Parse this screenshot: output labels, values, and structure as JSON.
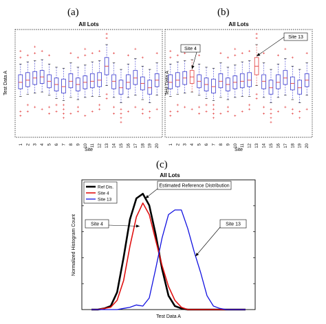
{
  "panel_labels": {
    "a": "(a)",
    "b": "(b)",
    "c": "(c)"
  },
  "colors": {
    "box": "#3333cc",
    "highlight": "#e23b3b",
    "outlier": "#e23b3b",
    "ref": "#000000",
    "site4": "#e01010",
    "site13": "#1010e0"
  },
  "chart_data": [
    {
      "type": "box",
      "panel": "a",
      "title": "All Lots",
      "xlabel": "Site",
      "ylabel": "Test Data A",
      "categories": [
        "1",
        "2",
        "3",
        "4",
        "5",
        "6",
        "7",
        "8",
        "9",
        "10",
        "11",
        "12",
        "13",
        "14",
        "15",
        "16",
        "17",
        "18",
        "19",
        "20"
      ],
      "highlight": [],
      "ylim": [
        0,
        100
      ],
      "boxes": [
        {
          "wlo": 38,
          "q1": 45,
          "med": 51,
          "q3": 58,
          "whi": 68
        },
        {
          "wlo": 40,
          "q1": 47,
          "med": 53,
          "q3": 60,
          "whi": 70
        },
        {
          "wlo": 41,
          "q1": 49,
          "med": 55,
          "q3": 61,
          "whi": 71
        },
        {
          "wlo": 42,
          "q1": 50,
          "med": 56,
          "q3": 62,
          "whi": 72
        },
        {
          "wlo": 39,
          "q1": 46,
          "med": 52,
          "q3": 58,
          "whi": 68
        },
        {
          "wlo": 36,
          "q1": 43,
          "med": 49,
          "q3": 55,
          "whi": 65
        },
        {
          "wlo": 34,
          "q1": 41,
          "med": 47,
          "q3": 54,
          "whi": 64
        },
        {
          "wlo": 37,
          "q1": 46,
          "med": 52,
          "q3": 59,
          "whi": 69
        },
        {
          "wlo": 35,
          "q1": 43,
          "med": 49,
          "q3": 55,
          "whi": 65
        },
        {
          "wlo": 37,
          "q1": 45,
          "med": 51,
          "q3": 57,
          "whi": 67
        },
        {
          "wlo": 38,
          "q1": 46,
          "med": 52,
          "q3": 59,
          "whi": 70
        },
        {
          "wlo": 38,
          "q1": 47,
          "med": 53,
          "q3": 60,
          "whi": 71
        },
        {
          "wlo": 48,
          "q1": 58,
          "med": 66,
          "q3": 74,
          "whi": 86
        },
        {
          "wlo": 37,
          "q1": 45,
          "med": 52,
          "q3": 58,
          "whi": 69
        },
        {
          "wlo": 32,
          "q1": 40,
          "med": 46,
          "q3": 53,
          "whi": 63
        },
        {
          "wlo": 37,
          "q1": 45,
          "med": 51,
          "q3": 58,
          "whi": 68
        },
        {
          "wlo": 39,
          "q1": 49,
          "med": 55,
          "q3": 62,
          "whi": 73
        },
        {
          "wlo": 35,
          "q1": 44,
          "med": 50,
          "q3": 56,
          "whi": 66
        },
        {
          "wlo": 32,
          "q1": 40,
          "med": 46,
          "q3": 53,
          "whi": 63
        },
        {
          "wlo": 39,
          "q1": 47,
          "med": 53,
          "q3": 59,
          "whi": 69
        }
      ],
      "outliers": [
        [
          20,
          24,
          74,
          80
        ],
        [
          24,
          30,
          76
        ],
        [
          28,
          78,
          84
        ],
        [
          26,
          80
        ],
        [
          22,
          28,
          76
        ],
        [
          24,
          30
        ],
        [
          18,
          22,
          26,
          30
        ],
        [
          22,
          78
        ],
        [
          24,
          28,
          74
        ],
        [
          20,
          76,
          82
        ],
        [
          24,
          78
        ],
        [
          26,
          30,
          80
        ],
        [
          36,
          40,
          92,
          96
        ],
        [
          22,
          28,
          78
        ],
        [
          14,
          18,
          22,
          26
        ],
        [
          24,
          76
        ],
        [
          28,
          82
        ],
        [
          22,
          26,
          74
        ],
        [
          18,
          24
        ],
        [
          26,
          78
        ]
      ],
      "annotations": []
    },
    {
      "type": "box",
      "panel": "b",
      "title": "All Lots",
      "xlabel": "Site",
      "ylabel": "Test Data A",
      "categories": [
        "1",
        "2",
        "3",
        "4",
        "5",
        "6",
        "7",
        "8",
        "9",
        "10",
        "11",
        "12",
        "13",
        "14",
        "15",
        "16",
        "17",
        "18",
        "19",
        "20"
      ],
      "highlight": [
        4,
        13
      ],
      "ylim": [
        0,
        100
      ],
      "boxes": [
        {
          "wlo": 38,
          "q1": 45,
          "med": 51,
          "q3": 58,
          "whi": 68
        },
        {
          "wlo": 40,
          "q1": 47,
          "med": 53,
          "q3": 60,
          "whi": 70
        },
        {
          "wlo": 41,
          "q1": 49,
          "med": 55,
          "q3": 61,
          "whi": 71
        },
        {
          "wlo": 42,
          "q1": 50,
          "med": 56,
          "q3": 62,
          "whi": 72
        },
        {
          "wlo": 39,
          "q1": 46,
          "med": 52,
          "q3": 58,
          "whi": 68
        },
        {
          "wlo": 36,
          "q1": 43,
          "med": 49,
          "q3": 55,
          "whi": 65
        },
        {
          "wlo": 34,
          "q1": 41,
          "med": 47,
          "q3": 54,
          "whi": 64
        },
        {
          "wlo": 37,
          "q1": 46,
          "med": 52,
          "q3": 59,
          "whi": 69
        },
        {
          "wlo": 35,
          "q1": 43,
          "med": 49,
          "q3": 55,
          "whi": 65
        },
        {
          "wlo": 37,
          "q1": 45,
          "med": 51,
          "q3": 57,
          "whi": 67
        },
        {
          "wlo": 38,
          "q1": 46,
          "med": 52,
          "q3": 59,
          "whi": 70
        },
        {
          "wlo": 38,
          "q1": 47,
          "med": 53,
          "q3": 60,
          "whi": 71
        },
        {
          "wlo": 48,
          "q1": 58,
          "med": 66,
          "q3": 74,
          "whi": 86
        },
        {
          "wlo": 37,
          "q1": 45,
          "med": 52,
          "q3": 58,
          "whi": 69
        },
        {
          "wlo": 32,
          "q1": 40,
          "med": 46,
          "q3": 53,
          "whi": 63
        },
        {
          "wlo": 37,
          "q1": 45,
          "med": 51,
          "q3": 58,
          "whi": 68
        },
        {
          "wlo": 39,
          "q1": 49,
          "med": 55,
          "q3": 62,
          "whi": 73
        },
        {
          "wlo": 35,
          "q1": 44,
          "med": 50,
          "q3": 56,
          "whi": 66
        },
        {
          "wlo": 32,
          "q1": 40,
          "med": 46,
          "q3": 53,
          "whi": 63
        },
        {
          "wlo": 39,
          "q1": 47,
          "med": 53,
          "q3": 59,
          "whi": 69
        }
      ],
      "outliers": [
        [
          20,
          24,
          74,
          80
        ],
        [
          24,
          30,
          76
        ],
        [
          28,
          78,
          84
        ],
        [
          26,
          80
        ],
        [
          22,
          28,
          76
        ],
        [
          24,
          30
        ],
        [
          18,
          22,
          26,
          30
        ],
        [
          22,
          78
        ],
        [
          24,
          28,
          74
        ],
        [
          20,
          76,
          82
        ],
        [
          24,
          78
        ],
        [
          26,
          30,
          80
        ],
        [
          36,
          40,
          92,
          96
        ],
        [
          22,
          28,
          78
        ],
        [
          14,
          18,
          22,
          26
        ],
        [
          24,
          76
        ],
        [
          28,
          82
        ],
        [
          22,
          26,
          74
        ],
        [
          18,
          24
        ],
        [
          26,
          78
        ]
      ],
      "annotations": [
        {
          "text": "Site 4",
          "target_site": 4
        },
        {
          "text": "Site 13",
          "target_site": 13
        }
      ]
    },
    {
      "type": "line",
      "panel": "c",
      "title": "All Lots",
      "xlabel": "Test Data A",
      "ylabel": "Normalized Histogram Count",
      "xlim": [
        0,
        24
      ],
      "ylim": [
        0,
        1.12
      ],
      "legend": "top-left",
      "series": [
        {
          "name": "Ref Dis.",
          "x": [
            0,
            1,
            2,
            3,
            4,
            5,
            6,
            7,
            8,
            9,
            10,
            11,
            12,
            13,
            14,
            15,
            16,
            17,
            18,
            19,
            20,
            21,
            22,
            23,
            24
          ],
          "y": [
            0,
            0,
            0.01,
            0.03,
            0.15,
            0.45,
            0.78,
            0.96,
            1.0,
            0.9,
            0.65,
            0.35,
            0.12,
            0.03,
            0.01,
            0,
            0,
            0,
            0,
            0,
            0,
            0,
            0,
            0,
            0
          ]
        },
        {
          "name": "Site 4",
          "x": [
            0,
            1,
            2,
            3,
            4,
            5,
            6,
            7,
            8,
            9,
            10,
            11,
            12,
            13,
            14,
            15,
            16,
            17,
            18,
            19,
            20,
            21,
            22,
            23,
            24
          ],
          "y": [
            0,
            0,
            0.01,
            0.02,
            0.08,
            0.25,
            0.55,
            0.8,
            0.92,
            0.82,
            0.6,
            0.38,
            0.2,
            0.08,
            0.02,
            0,
            0,
            0,
            0,
            0,
            0,
            0,
            0,
            0,
            0
          ]
        },
        {
          "name": "Site 13",
          "x": [
            0,
            1,
            2,
            3,
            4,
            5,
            6,
            7,
            8,
            9,
            10,
            11,
            12,
            13,
            14,
            15,
            16,
            17,
            18,
            19,
            20,
            21,
            22,
            23,
            24
          ],
          "y": [
            0,
            0,
            0,
            0,
            0,
            0.01,
            0.02,
            0.04,
            0.03,
            0.1,
            0.35,
            0.62,
            0.82,
            0.86,
            0.86,
            0.7,
            0.5,
            0.32,
            0.12,
            0.03,
            0.01,
            0,
            0,
            0,
            0
          ]
        }
      ],
      "annotations": [
        {
          "text": "Estimated Reference Distribution"
        },
        {
          "text": "Site 4"
        },
        {
          "text": "Site 13"
        }
      ]
    }
  ]
}
